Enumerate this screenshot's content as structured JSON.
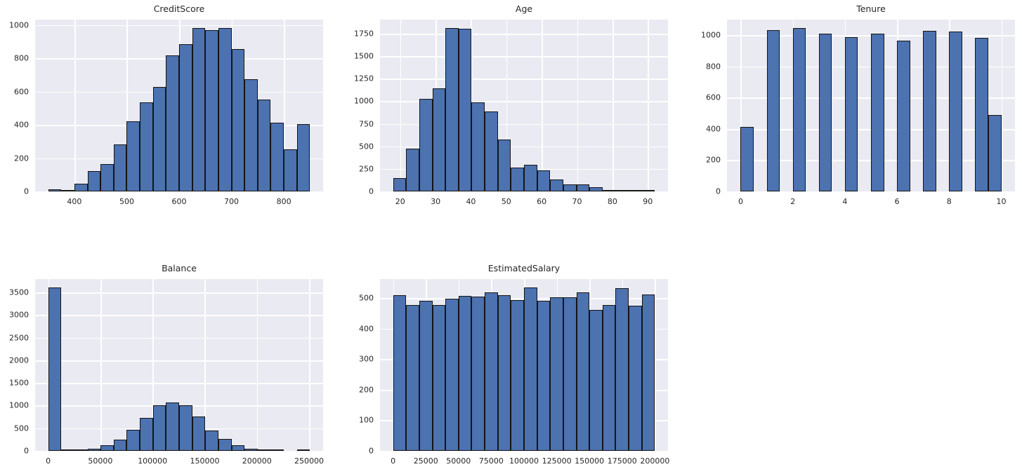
{
  "figure": {
    "background": "#ffffff",
    "axes_background": "#eaeaf2",
    "grid_color": "#ffffff",
    "bar_fill": "#4c72b0",
    "bar_edge": "#151515",
    "text_color": "#262626"
  },
  "chart_data": [
    {
      "type": "bar",
      "subtype": "histogram",
      "title": "CreditScore",
      "n_bins": 20,
      "bin_start": 350,
      "bin_width": 25,
      "values": [
        11,
        2,
        45,
        121,
        166,
        284,
        420,
        537,
        628,
        816,
        884,
        982,
        970,
        983,
        854,
        675,
        554,
        411,
        251,
        406
      ],
      "xlim": [
        325,
        875
      ],
      "ylim": [
        0,
        1032.2
      ],
      "xtick_values": [
        400,
        500,
        600,
        700,
        800
      ],
      "xtick_labels": [
        "400",
        "500",
        "600",
        "700",
        "800"
      ],
      "ytick_values": [
        0,
        200,
        400,
        600,
        800,
        1000
      ],
      "ytick_labels": [
        "0",
        "200",
        "400",
        "600",
        "800",
        "1000"
      ],
      "grid": true,
      "legend": false
    },
    {
      "type": "bar",
      "subtype": "histogram",
      "title": "Age",
      "n_bins": 20,
      "bin_start": 18,
      "bin_width": 3.7,
      "values": [
        145,
        478,
        1030,
        1145,
        1815,
        1805,
        985,
        885,
        575,
        262,
        295,
        235,
        130,
        78,
        77,
        45,
        6,
        6,
        1,
        2
      ],
      "xlim": [
        14.3,
        95.7
      ],
      "ylim": [
        0,
        1905.8
      ],
      "xtick_values": [
        20,
        30,
        40,
        50,
        60,
        70,
        80,
        90
      ],
      "xtick_labels": [
        "20",
        "30",
        "40",
        "50",
        "60",
        "70",
        "80",
        "90"
      ],
      "ytick_values": [
        0,
        250,
        500,
        750,
        1000,
        1250,
        1500,
        1750
      ],
      "ytick_labels": [
        "0",
        "250",
        "500",
        "750",
        "1000",
        "1250",
        "1500",
        "1750"
      ],
      "grid": true,
      "legend": false
    },
    {
      "type": "bar",
      "subtype": "histogram",
      "title": "Tenure",
      "n_bins": 20,
      "bin_start": 0,
      "bin_width": 0.5,
      "values": [
        413,
        0,
        1035,
        0,
        1048,
        0,
        1009,
        0,
        989,
        0,
        1012,
        0,
        967,
        0,
        1028,
        0,
        1025,
        0,
        984,
        490
      ],
      "xlim": [
        -0.525,
        10.525
      ],
      "ylim": [
        0,
        1100.4
      ],
      "xtick_values": [
        0,
        2,
        4,
        6,
        8,
        10
      ],
      "xtick_labels": [
        "0",
        "2",
        "4",
        "6",
        "8",
        "10"
      ],
      "ytick_values": [
        0,
        200,
        400,
        600,
        800,
        1000
      ],
      "ytick_labels": [
        "0",
        "200",
        "400",
        "600",
        "800",
        "1000"
      ],
      "grid": true,
      "legend": false
    },
    {
      "type": "bar",
      "subtype": "histogram",
      "title": "Balance",
      "n_bins": 20,
      "bin_start": 0,
      "bin_width": 12544.9,
      "values": [
        3617,
        2,
        11,
        50,
        118,
        242,
        466,
        733,
        1001,
        1074,
        1003,
        764,
        454,
        268,
        130,
        40,
        24,
        2,
        0,
        1
      ],
      "xlim": [
        -12544.9,
        263442.9
      ],
      "ylim": [
        0,
        3797.9
      ],
      "xtick_values": [
        0,
        50000,
        100000,
        150000,
        200000,
        250000
      ],
      "xtick_labels": [
        "0",
        "50000",
        "100000",
        "150000",
        "200000",
        "250000"
      ],
      "ytick_values": [
        0,
        500,
        1000,
        1500,
        2000,
        2500,
        3000,
        3500
      ],
      "ytick_labels": [
        "0",
        "500",
        "1000",
        "1500",
        "2000",
        "2500",
        "3000",
        "3500"
      ],
      "grid": true,
      "legend": false
    },
    {
      "type": "bar",
      "subtype": "histogram",
      "title": "EstimatedSalary",
      "n_bins": 20,
      "bin_start": 11.58,
      "bin_width": 9999.05,
      "values": [
        510,
        477,
        492,
        477,
        498,
        508,
        505,
        520,
        509,
        493,
        536,
        491,
        504,
        502,
        520,
        462,
        477,
        532,
        475,
        512
      ],
      "xlim": [
        -9987.5,
        209991.5
      ],
      "ylim": [
        0,
        562.8
      ],
      "xtick_values": [
        0,
        25000,
        50000,
        75000,
        100000,
        125000,
        150000,
        175000,
        200000
      ],
      "xtick_labels": [
        "0",
        "25000",
        "50000",
        "75000",
        "100000",
        "125000",
        "150000",
        "175000",
        "200000"
      ],
      "ytick_values": [
        0,
        100,
        200,
        300,
        400,
        500
      ],
      "ytick_labels": [
        "0",
        "100",
        "200",
        "300",
        "400",
        "500"
      ],
      "grid": true,
      "legend": false
    }
  ]
}
